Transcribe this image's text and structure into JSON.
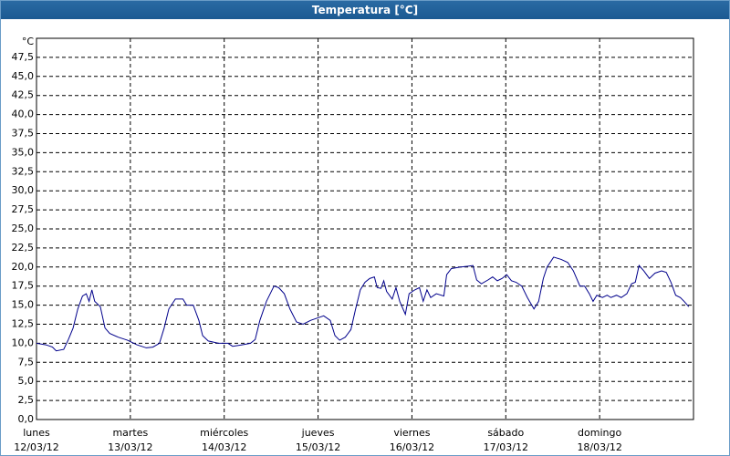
{
  "chart_data": {
    "type": "line",
    "title": "Temperatura [°C]",
    "y_unit": "°C",
    "xlim": [
      0,
      7
    ],
    "xticks": [
      {
        "value": 0,
        "label": "lunes"
      },
      {
        "value": 1,
        "label": "martes"
      },
      {
        "value": 2,
        "label": "miércoles"
      },
      {
        "value": 3,
        "label": "jueves"
      },
      {
        "value": 4,
        "label": "viernes"
      },
      {
        "value": 5,
        "label": "sábado"
      },
      {
        "value": 6,
        "label": "domingo"
      }
    ],
    "xtick_dates": [
      "12/03/12",
      "13/03/12",
      "14/03/12",
      "15/03/12",
      "16/03/12",
      "17/03/12",
      "18/03/12"
    ],
    "ylim": [
      0,
      50
    ],
    "yticks": [
      {
        "value": 0,
        "label": "0,0"
      },
      {
        "value": 2.5,
        "label": "2,5"
      },
      {
        "value": 5,
        "label": "5,0"
      },
      {
        "value": 7.5,
        "label": "7,5"
      },
      {
        "value": 10,
        "label": "10,0"
      },
      {
        "value": 12.5,
        "label": "12,5"
      },
      {
        "value": 15,
        "label": "15,0"
      },
      {
        "value": 17.5,
        "label": "17,5"
      },
      {
        "value": 20,
        "label": "20,0"
      },
      {
        "value": 22.5,
        "label": "22,5"
      },
      {
        "value": 25,
        "label": "25,0"
      },
      {
        "value": 27.5,
        "label": "27,5"
      },
      {
        "value": 30,
        "label": "30,0"
      },
      {
        "value": 32.5,
        "label": "32,5"
      },
      {
        "value": 35,
        "label": "35,0"
      },
      {
        "value": 37.5,
        "label": "37,5"
      },
      {
        "value": 40,
        "label": "40,0"
      },
      {
        "value": 42.5,
        "label": "42,5"
      },
      {
        "value": 45,
        "label": "45,0"
      },
      {
        "value": 47.5,
        "label": "47,5"
      }
    ],
    "grid": true,
    "color": "#00008b",
    "x": [
      0,
      0.1,
      0.17,
      0.21,
      0.29,
      0.34,
      0.39,
      0.44,
      0.49,
      0.53,
      0.56,
      0.59,
      0.62,
      0.68,
      0.73,
      0.78,
      0.87,
      0.97,
      1.07,
      1.17,
      1.24,
      1.31,
      1.36,
      1.41,
      1.48,
      1.56,
      1.6,
      1.67,
      1.73,
      1.77,
      1.83,
      1.94,
      2.04,
      2.09,
      2.19,
      2.28,
      2.33,
      2.38,
      2.45,
      2.53,
      2.58,
      2.64,
      2.7,
      2.77,
      2.84,
      2.92,
      2.99,
      3.06,
      3.13,
      3.18,
      3.23,
      3.29,
      3.35,
      3.4,
      3.45,
      3.5,
      3.55,
      3.6,
      3.63,
      3.67,
      3.7,
      3.73,
      3.79,
      3.83,
      3.87,
      3.93,
      3.97,
      4.03,
      4.08,
      4.12,
      4.16,
      4.2,
      4.26,
      4.34,
      4.37,
      4.42,
      4.52,
      4.59,
      4.65,
      4.69,
      4.74,
      4.81,
      4.86,
      4.91,
      4.96,
      5.01,
      5.06,
      5.11,
      5.17,
      5.23,
      5.3,
      5.35,
      5.4,
      5.44,
      5.51,
      5.59,
      5.66,
      5.72,
      5.79,
      5.84,
      5.89,
      5.93,
      5.97,
      6.03,
      6.08,
      6.12,
      6.18,
      6.23,
      6.29,
      6.34,
      6.38,
      6.42,
      6.47,
      6.53,
      6.59,
      6.66,
      6.71,
      6.76,
      6.81,
      6.86,
      6.9,
      6.95
    ],
    "values": [
      10.0,
      9.8,
      9.5,
      9.0,
      9.2,
      10.5,
      12.0,
      14.5,
      16.2,
      16.5,
      15.5,
      17.0,
      15.5,
      14.8,
      12.0,
      11.3,
      10.8,
      10.4,
      9.8,
      9.4,
      9.5,
      10.0,
      12.0,
      14.5,
      15.8,
      15.8,
      15.0,
      15.0,
      13.0,
      11.0,
      10.3,
      10.0,
      10.0,
      9.6,
      9.8,
      10.0,
      10.5,
      13.0,
      15.5,
      17.5,
      17.3,
      16.5,
      14.5,
      12.8,
      12.5,
      13.0,
      13.3,
      13.6,
      13.0,
      11.0,
      10.4,
      10.8,
      11.8,
      14.5,
      17.0,
      18.0,
      18.5,
      18.7,
      17.3,
      17.2,
      18.2,
      16.8,
      15.8,
      17.3,
      15.5,
      13.8,
      16.5,
      17.0,
      17.3,
      15.5,
      17.0,
      16.0,
      16.5,
      16.2,
      19.0,
      19.8,
      20.0,
      20.1,
      20.2,
      18.3,
      17.8,
      18.3,
      18.7,
      18.2,
      18.5,
      19.0,
      18.2,
      18.0,
      17.5,
      16.0,
      14.5,
      15.5,
      18.5,
      20.0,
      21.3,
      21.0,
      20.6,
      19.5,
      17.5,
      17.5,
      16.5,
      15.5,
      16.3,
      16.0,
      16.3,
      16.0,
      16.3,
      16.0,
      16.5,
      17.8,
      18.0,
      20.2,
      19.5,
      18.5,
      19.2,
      19.5,
      19.3,
      18.0,
      16.3,
      16.0,
      15.5,
      14.8
    ]
  }
}
